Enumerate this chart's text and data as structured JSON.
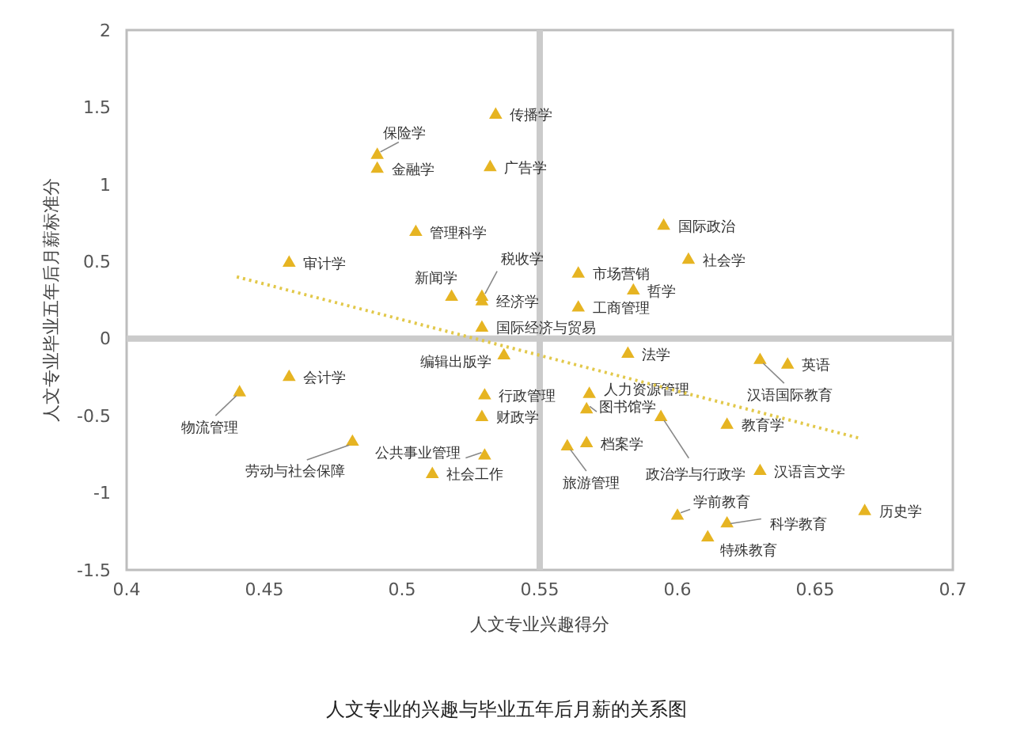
{
  "chart_data": {
    "type": "scatter",
    "title": "人文专业的兴趣与毕业五年后月薪的关系图",
    "xlabel": "人文专业兴趣得分",
    "ylabel": "人文专业毕业五年后月薪标准分",
    "xlim": [
      0.4,
      0.7
    ],
    "xticks": [
      0.4,
      0.45,
      0.5,
      0.55,
      0.6,
      0.65,
      0.7
    ],
    "ylim": [
      -1.5,
      2
    ],
    "yticks": [
      -1.5,
      -1,
      -0.5,
      0,
      0.5,
      1,
      1.5,
      2
    ],
    "grid": false,
    "marker": "triangle",
    "ref_lines": [
      {
        "axis": "x",
        "value": 0.55,
        "color": "#cbcbcb"
      },
      {
        "axis": "y",
        "value": 0,
        "color": "#cbcbcb"
      }
    ],
    "series": [
      {
        "color": "#e6b422",
        "x": [
          0.534,
          0.491,
          0.491,
          0.532,
          0.505,
          0.459,
          0.529,
          0.529,
          0.518,
          0.529,
          0.595,
          0.604,
          0.564,
          0.584,
          0.564,
          0.537,
          0.459,
          0.441,
          0.53,
          0.529,
          0.482,
          0.53,
          0.511,
          0.582,
          0.64,
          0.63,
          0.568,
          0.567,
          0.594,
          0.618,
          0.567,
          0.56,
          0.63,
          0.6,
          0.618,
          0.611,
          0.668
        ],
        "values": [
          1.45,
          1.19,
          1.1,
          1.11,
          0.69,
          0.49,
          0.27,
          0.24,
          0.27,
          0.07,
          0.73,
          0.51,
          0.42,
          0.31,
          0.2,
          -0.11,
          -0.25,
          -0.35,
          -0.37,
          -0.51,
          -0.67,
          -0.76,
          -0.88,
          -0.1,
          -0.17,
          -0.14,
          -0.36,
          -0.46,
          -0.51,
          -0.56,
          -0.68,
          -0.7,
          -0.86,
          -1.15,
          -1.2,
          -1.29,
          -1.12
        ],
        "value_labels": [
          "传播学",
          "保险学",
          "金融学",
          "广告学",
          "管理科学",
          "审计学",
          "税收学",
          "经济学",
          "新闻学",
          "国际经济与贸易",
          "国际政治",
          "社会学",
          "市场营销",
          "哲学",
          "工商管理",
          "编辑出版学",
          "会计学",
          "物流管理",
          "行政管理",
          "财政学",
          "劳动与社会保障",
          "公共事业管理",
          "社会工作",
          "法学",
          "英语",
          "汉语国际教育",
          "人力资源管理",
          "图书馆学",
          "政治学与行政学",
          "教育学",
          "档案学",
          "旅游管理",
          "汉语言文学",
          "学前教育",
          "科学教育",
          "特殊教育",
          "历史学"
        ]
      },
      {
        "type": "line",
        "color": "#e2c84a",
        "line_style": "dotted",
        "marker": "none",
        "x": [
          0.44,
          0.667
        ],
        "values": [
          0.4,
          -0.65
        ]
      }
    ]
  }
}
